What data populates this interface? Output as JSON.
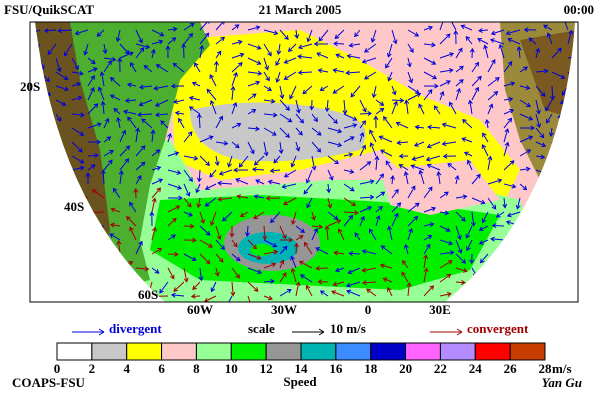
{
  "header": {
    "left": "FSU/QuikSCAT",
    "center": "21 March 2005",
    "right": "00:00"
  },
  "map": {
    "lat_labels": [
      "20S",
      "40S",
      "60S"
    ],
    "lon_labels": [
      "60W",
      "30W",
      "0",
      "30E"
    ]
  },
  "legend": {
    "divergent": {
      "label": "divergent",
      "color": "#0000dd"
    },
    "scale": {
      "label": "scale",
      "value": "10 m/s"
    },
    "convergent": {
      "label": "convergent",
      "color": "#a00000"
    }
  },
  "colorbar": {
    "colors": [
      "#ffffff",
      "#c8c8c8",
      "#ffff00",
      "#ffc8c8",
      "#96ff96",
      "#00f000",
      "#969696",
      "#00b4b4",
      "#3c8cff",
      "#0000c8",
      "#ff64ff",
      "#b48cff",
      "#ff0000",
      "#c83c00",
      "#000000"
    ],
    "ticks": [
      0,
      2,
      4,
      6,
      8,
      10,
      12,
      14,
      16,
      18,
      20,
      22,
      24,
      26,
      28
    ],
    "unit": "m/s",
    "title": "Speed"
  },
  "footer": {
    "left": "COAPS-FSU",
    "right": "Yan Gu"
  }
}
